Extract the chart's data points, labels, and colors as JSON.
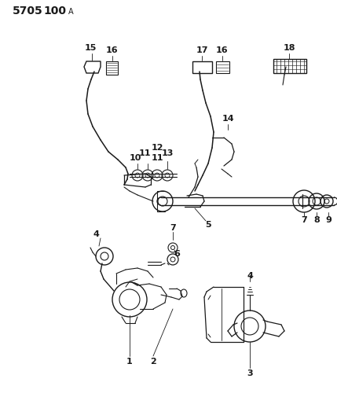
{
  "title_num": "5705",
  "title_sub": "100",
  "title_letter": "A",
  "background_color": "#ffffff",
  "line_color": "#1a1a1a",
  "figsize": [
    4.29,
    5.33
  ],
  "dpi": 100
}
